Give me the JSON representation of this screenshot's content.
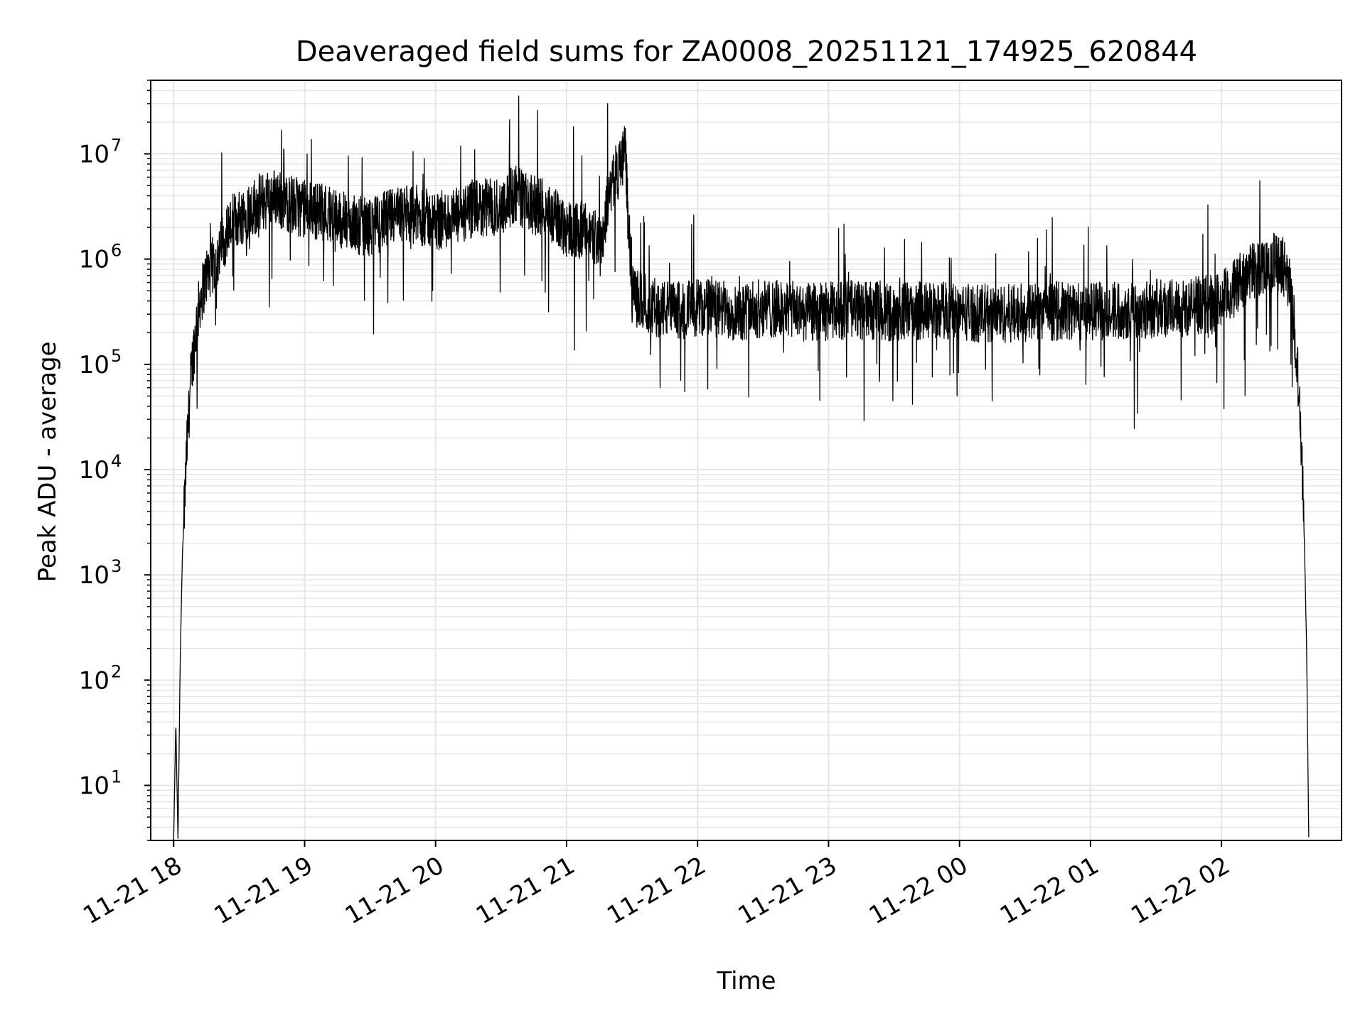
{
  "chart_data": {
    "type": "line",
    "title": "Deaveraged field sums for ZA0008_20251121_174925_620844",
    "xlabel": "Time",
    "ylabel": "Peak ADU - average",
    "yscale": "log",
    "ylim": [
      3,
      50000000
    ],
    "xlim": [
      "2025-11-21T17:49:30",
      "2025-11-22T02:55:00"
    ],
    "grid": true,
    "line_color": "#000000",
    "grid_color": "#e6e6e6",
    "x_ticks": [
      {
        "value": "2025-11-21T18:00:00",
        "label": "11-21 18"
      },
      {
        "value": "2025-11-21T19:00:00",
        "label": "11-21 19"
      },
      {
        "value": "2025-11-21T20:00:00",
        "label": "11-21 20"
      },
      {
        "value": "2025-11-21T21:00:00",
        "label": "11-21 21"
      },
      {
        "value": "2025-11-21T22:00:00",
        "label": "11-21 22"
      },
      {
        "value": "2025-11-21T23:00:00",
        "label": "11-21 23"
      },
      {
        "value": "2025-11-22T00:00:00",
        "label": "11-22 00"
      },
      {
        "value": "2025-11-22T01:00:00",
        "label": "11-22 01"
      },
      {
        "value": "2025-11-22T02:00:00",
        "label": "11-22 02"
      }
    ],
    "y_ticks": [
      {
        "value": 10,
        "base": "10",
        "exp": "1"
      },
      {
        "value": 100,
        "base": "10",
        "exp": "2"
      },
      {
        "value": 1000,
        "base": "10",
        "exp": "3"
      },
      {
        "value": 10000,
        "base": "10",
        "exp": "4"
      },
      {
        "value": 100000,
        "base": "10",
        "exp": "5"
      },
      {
        "value": 1000000,
        "base": "10",
        "exp": "6"
      },
      {
        "value": 10000000,
        "base": "10",
        "exp": "7"
      }
    ],
    "series": [
      {
        "x": [
          "2025-11-21T18:00:00",
          "2025-11-21T18:01:00",
          "2025-11-21T18:02:00",
          "2025-11-21T18:03:00",
          "2025-11-21T18:04:00",
          "2025-11-21T18:06:00",
          "2025-11-21T18:08:00",
          "2025-11-21T18:10:00",
          "2025-11-21T18:12:00",
          "2025-11-21T18:15:00",
          "2025-11-21T18:20:00",
          "2025-11-21T18:25:00",
          "2025-11-21T18:30:00",
          "2025-11-21T18:35:00",
          "2025-11-21T18:40:00",
          "2025-11-21T18:45:00",
          "2025-11-21T18:47:00",
          "2025-11-21T18:50:00",
          "2025-11-21T19:00:00",
          "2025-11-21T19:10:00",
          "2025-11-21T19:20:00",
          "2025-11-21T19:30:00",
          "2025-11-21T19:40:00",
          "2025-11-21T19:50:00",
          "2025-11-21T20:00:00",
          "2025-11-21T20:10:00",
          "2025-11-21T20:20:00",
          "2025-11-21T20:30:00",
          "2025-11-21T20:38:00",
          "2025-11-21T20:40:00",
          "2025-11-21T20:50:00",
          "2025-11-21T21:00:00",
          "2025-11-21T21:10:00",
          "2025-11-21T21:16:00",
          "2025-11-21T21:20:00",
          "2025-11-21T21:25:00",
          "2025-11-21T21:27:00",
          "2025-11-21T21:28:00",
          "2025-11-21T21:30:00",
          "2025-11-21T21:35:00",
          "2025-11-21T21:40:00",
          "2025-11-21T21:50:00",
          "2025-11-21T22:00:00",
          "2025-11-21T22:10:00",
          "2025-11-21T22:20:00",
          "2025-11-21T22:30:00",
          "2025-11-21T22:40:00",
          "2025-11-21T22:50:00",
          "2025-11-21T23:00:00",
          "2025-11-21T23:10:00",
          "2025-11-21T23:20:00",
          "2025-11-21T23:30:00",
          "2025-11-21T23:40:00",
          "2025-11-21T23:50:00",
          "2025-11-22T00:00:00",
          "2025-11-22T00:15:00",
          "2025-11-22T00:30:00",
          "2025-11-22T00:45:00",
          "2025-11-22T01:00:00",
          "2025-11-22T01:15:00",
          "2025-11-22T01:30:00",
          "2025-11-22T01:45:00",
          "2025-11-22T02:00:00",
          "2025-11-22T02:05:00",
          "2025-11-22T02:10:00",
          "2025-11-22T02:15:00",
          "2025-11-22T02:20:00",
          "2025-11-22T02:25:00",
          "2025-11-22T02:30:00",
          "2025-11-22T02:33:00",
          "2025-11-22T02:36:00",
          "2025-11-22T02:38:00",
          "2025-11-22T02:39:00",
          "2025-11-22T02:40:00"
        ],
        "y": [
          3,
          40,
          3,
          150,
          1500,
          15000,
          80000,
          200000,
          400000,
          700000,
          1000000,
          2000000,
          2500000,
          3000000,
          3500000,
          3800000,
          4000000,
          3500000,
          3000000,
          2800000,
          2200000,
          2000000,
          2500000,
          2700000,
          2300000,
          2500000,
          3000000,
          3200000,
          4500000,
          3500000,
          3000000,
          2000000,
          1800000,
          1500000,
          5000000,
          8000000,
          12000000,
          3000000,
          450000,
          400000,
          350000,
          320000,
          350000,
          330000,
          320000,
          340000,
          330000,
          310000,
          320000,
          330000,
          320000,
          310000,
          320000,
          330000,
          320000,
          300000,
          310000,
          320000,
          320000,
          330000,
          340000,
          350000,
          400000,
          500000,
          650000,
          800000,
          900000,
          950000,
          800000,
          300000,
          40000,
          2000,
          200,
          3
        ],
        "noise_dex": 0.28
      }
    ]
  }
}
